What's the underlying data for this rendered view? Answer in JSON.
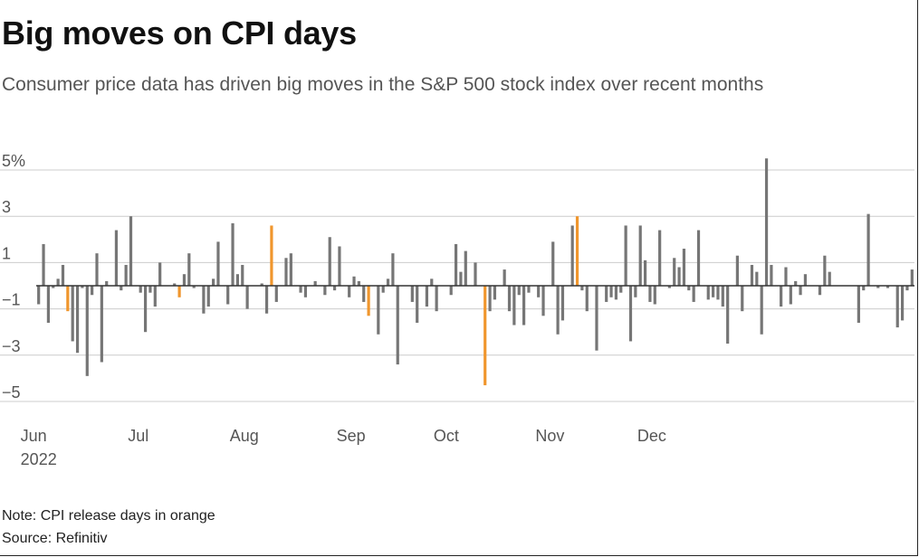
{
  "title": "Big moves on CPI days",
  "subtitle": "Consumer price data has driven big moves in the S&P 500 stock index over recent months",
  "note": "Note: CPI release days in orange",
  "source": "Source: Refinitiv",
  "colors": {
    "normal": "#767676",
    "cpi": "#f0962d",
    "grid": "#cccccc",
    "zero": "#333333"
  },
  "chart_data": {
    "type": "bar",
    "ylabel": "",
    "xlabel": "",
    "ylim": [
      -5.5,
      5.6
    ],
    "grid": true,
    "y_ticks": [
      {
        "value": 5,
        "label": "5%"
      },
      {
        "value": 3,
        "label": "3"
      },
      {
        "value": 1,
        "label": "1"
      },
      {
        "value": -1,
        "label": "−1"
      },
      {
        "value": -3,
        "label": "−3"
      },
      {
        "value": -5,
        "label": "−5"
      }
    ],
    "x_ticks": [
      {
        "index": 0,
        "label": "Jun",
        "sublabel": "2022"
      },
      {
        "index": 21,
        "label": "Jul",
        "sublabel": ""
      },
      {
        "index": 42,
        "label": "Aug",
        "sublabel": ""
      },
      {
        "index": 64,
        "label": "Sep",
        "sublabel": ""
      },
      {
        "index": 84,
        "label": "Oct",
        "sublabel": ""
      },
      {
        "index": 105,
        "label": "Nov",
        "sublabel": ""
      },
      {
        "index": 126,
        "label": "Dec",
        "sublabel": ""
      }
    ],
    "cpi_indices": [
      6,
      29,
      48,
      68,
      92,
      111
    ],
    "values": [
      -0.8,
      1.8,
      -1.6,
      -0.1,
      0.3,
      0.9,
      -1.1,
      -2.4,
      -2.9,
      -0.1,
      -3.9,
      -0.4,
      1.4,
      -3.3,
      0.2,
      0,
      2.4,
      -0.2,
      0.9,
      3.0,
      0,
      -0.3,
      -2.0,
      -0.3,
      -0.9,
      1.0,
      0,
      0,
      0.1,
      -0.5,
      0.5,
      1.4,
      -0.1,
      0,
      -1.2,
      -0.9,
      0.3,
      1.9,
      0,
      -0.8,
      2.7,
      0.5,
      0.9,
      -1.0,
      0,
      0,
      0.1,
      -1.2,
      2.6,
      -0.7,
      0,
      1.2,
      1.4,
      0,
      -0.3,
      -0.5,
      0,
      0.2,
      0,
      -0.4,
      2.1,
      -0.2,
      1.7,
      0,
      -0.5,
      0.4,
      0.2,
      -0.7,
      -1.3,
      0,
      -2.1,
      -0.3,
      0.3,
      1.4,
      -3.4,
      0,
      0,
      -0.7,
      -1.6,
      0,
      -0.9,
      0.3,
      -1.1,
      0,
      0,
      -0.4,
      1.8,
      0.6,
      1.5,
      0,
      1.0,
      0,
      -4.3,
      -1.1,
      -0.6,
      0,
      0.7,
      -1.1,
      -1.7,
      -0.4,
      -1.7,
      -0.3,
      0,
      -0.5,
      -1.3,
      0,
      1.9,
      -2.1,
      -1.5,
      0,
      2.6,
      3.0,
      -0.2,
      -1.1,
      0,
      -2.8,
      0,
      -0.7,
      -0.5,
      -0.6,
      -0.3,
      2.6,
      -2.4,
      -0.5,
      2.6,
      1.1,
      -0.7,
      -0.8,
      2.4,
      0,
      -0.1,
      1.2,
      0.8,
      1.6,
      -0.2,
      -0.7,
      2.4,
      0,
      -0.6,
      -0.5,
      -0.6,
      -0.9,
      -2.5,
      0,
      1.3,
      -1.1,
      0,
      0.9,
      0.6,
      -2.1,
      5.5,
      0.9,
      0,
      -0.9,
      0.8,
      -0.8,
      0.2,
      -0.4,
      0.5,
      0,
      0,
      -0.4,
      1.3,
      0.6,
      0,
      0,
      0,
      0,
      0,
      -1.6,
      -0.2,
      3.1,
      0,
      -0.1,
      0,
      -0.1,
      0,
      -1.8,
      -1.5,
      -0.2,
      0.7
    ]
  }
}
